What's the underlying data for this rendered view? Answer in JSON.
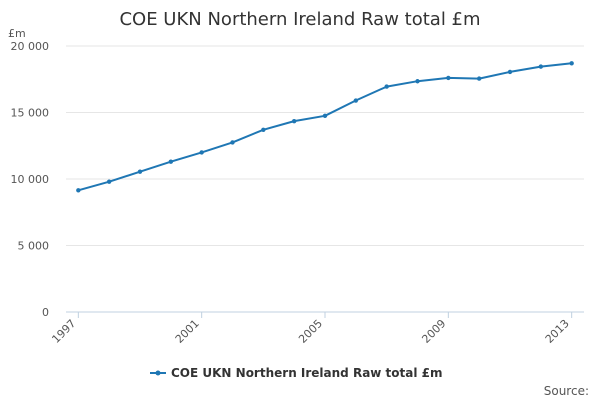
{
  "chart_data": {
    "type": "line",
    "title": "COE UKN Northern Ireland Raw total £m",
    "y_unit": "£m",
    "xlabel": "",
    "ylabel": "",
    "x": [
      1997,
      1998,
      1999,
      2000,
      2001,
      2002,
      2003,
      2004,
      2005,
      2006,
      2007,
      2008,
      2009,
      2010,
      2011,
      2012,
      2013
    ],
    "x_tick_labels": [
      "1997",
      "2001",
      "2005",
      "2009",
      "2013"
    ],
    "x_tick_values": [
      1997,
      2001,
      2005,
      2009,
      2013
    ],
    "y_ticks": [
      0,
      5000,
      10000,
      15000,
      20000
    ],
    "y_tick_labels": [
      "0",
      "5 000",
      "10 000",
      "15 000",
      "20 000"
    ],
    "ylim": [
      0,
      20000
    ],
    "series": [
      {
        "name": "COE UKN Northern Ireland Raw total £m",
        "color": "#1f77b4",
        "values": [
          9150,
          9800,
          10550,
          11300,
          12000,
          12750,
          13700,
          14350,
          14750,
          15900,
          16950,
          17350,
          17600,
          17550,
          18050,
          18450,
          18700
        ]
      }
    ],
    "legend": "bottom-center",
    "grid": true,
    "source": "Source:"
  }
}
